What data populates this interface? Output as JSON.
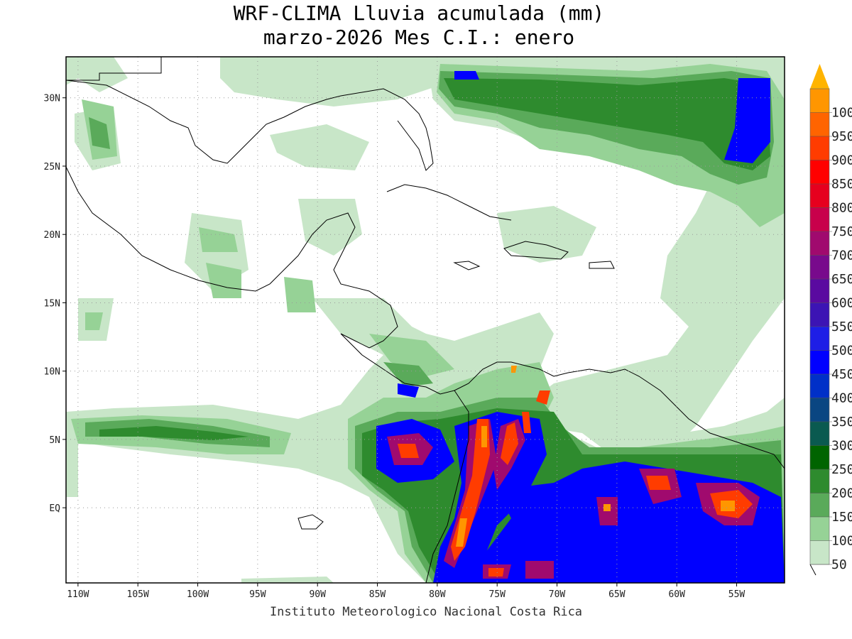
{
  "title": {
    "line1": "WRF-CLIMA Lluvia acumulada (mm)",
    "line2": "marzo-2026 Mes C.I.: enero"
  },
  "footer": "Instituto Meteorologico Nacional Costa Rica",
  "map": {
    "lon_range": [
      -111,
      -51
    ],
    "lat_range": [
      -5.5,
      33
    ],
    "x_ticks": [
      {
        "lon": -110,
        "label": "110W"
      },
      {
        "lon": -105,
        "label": "105W"
      },
      {
        "lon": -100,
        "label": "100W"
      },
      {
        "lon": -95,
        "label": "95W"
      },
      {
        "lon": -90,
        "label": "90W"
      },
      {
        "lon": -85,
        "label": "85W"
      },
      {
        "lon": -80,
        "label": "80W"
      },
      {
        "lon": -75,
        "label": "75W"
      },
      {
        "lon": -70,
        "label": "70W"
      },
      {
        "lon": -65,
        "label": "65W"
      },
      {
        "lon": -60,
        "label": "60W"
      },
      {
        "lon": -55,
        "label": "55W"
      }
    ],
    "y_ticks": [
      {
        "lat": 30,
        "label": "30N"
      },
      {
        "lat": 25,
        "label": "25N"
      },
      {
        "lat": 20,
        "label": "20N"
      },
      {
        "lat": 15,
        "label": "15N"
      },
      {
        "lat": 10,
        "label": "10N"
      },
      {
        "lat": 5,
        "label": "5N"
      },
      {
        "lat": 0,
        "label": "EQ"
      }
    ]
  },
  "colorbar": {
    "levels": [
      {
        "label": "50",
        "color": "#c8e6c8"
      },
      {
        "label": "100",
        "color": "#96d296"
      },
      {
        "label": "150",
        "color": "#5aaa5a"
      },
      {
        "label": "200",
        "color": "#2e8b2e"
      },
      {
        "label": "250",
        "color": "#006400"
      },
      {
        "label": "300",
        "color": "#0a5a50"
      },
      {
        "label": "350",
        "color": "#0a4682"
      },
      {
        "label": "400",
        "color": "#0030c8"
      },
      {
        "label": "450",
        "color": "#0000ff"
      },
      {
        "label": "500",
        "color": "#1e1ee6"
      },
      {
        "label": "550",
        "color": "#3c14b4"
      },
      {
        "label": "600",
        "color": "#5a0aa0"
      },
      {
        "label": "650",
        "color": "#780a8c"
      },
      {
        "label": "700",
        "color": "#a00a6e"
      },
      {
        "label": "750",
        "color": "#c8004b"
      },
      {
        "label": "800",
        "color": "#e6001e"
      },
      {
        "label": "850",
        "color": "#ff0000"
      },
      {
        "label": "900",
        "color": "#ff3c00"
      },
      {
        "label": "950",
        "color": "#ff6400"
      },
      {
        "label": "1000",
        "color": "#ff9600"
      }
    ],
    "overflow_color": "#ffb400"
  }
}
